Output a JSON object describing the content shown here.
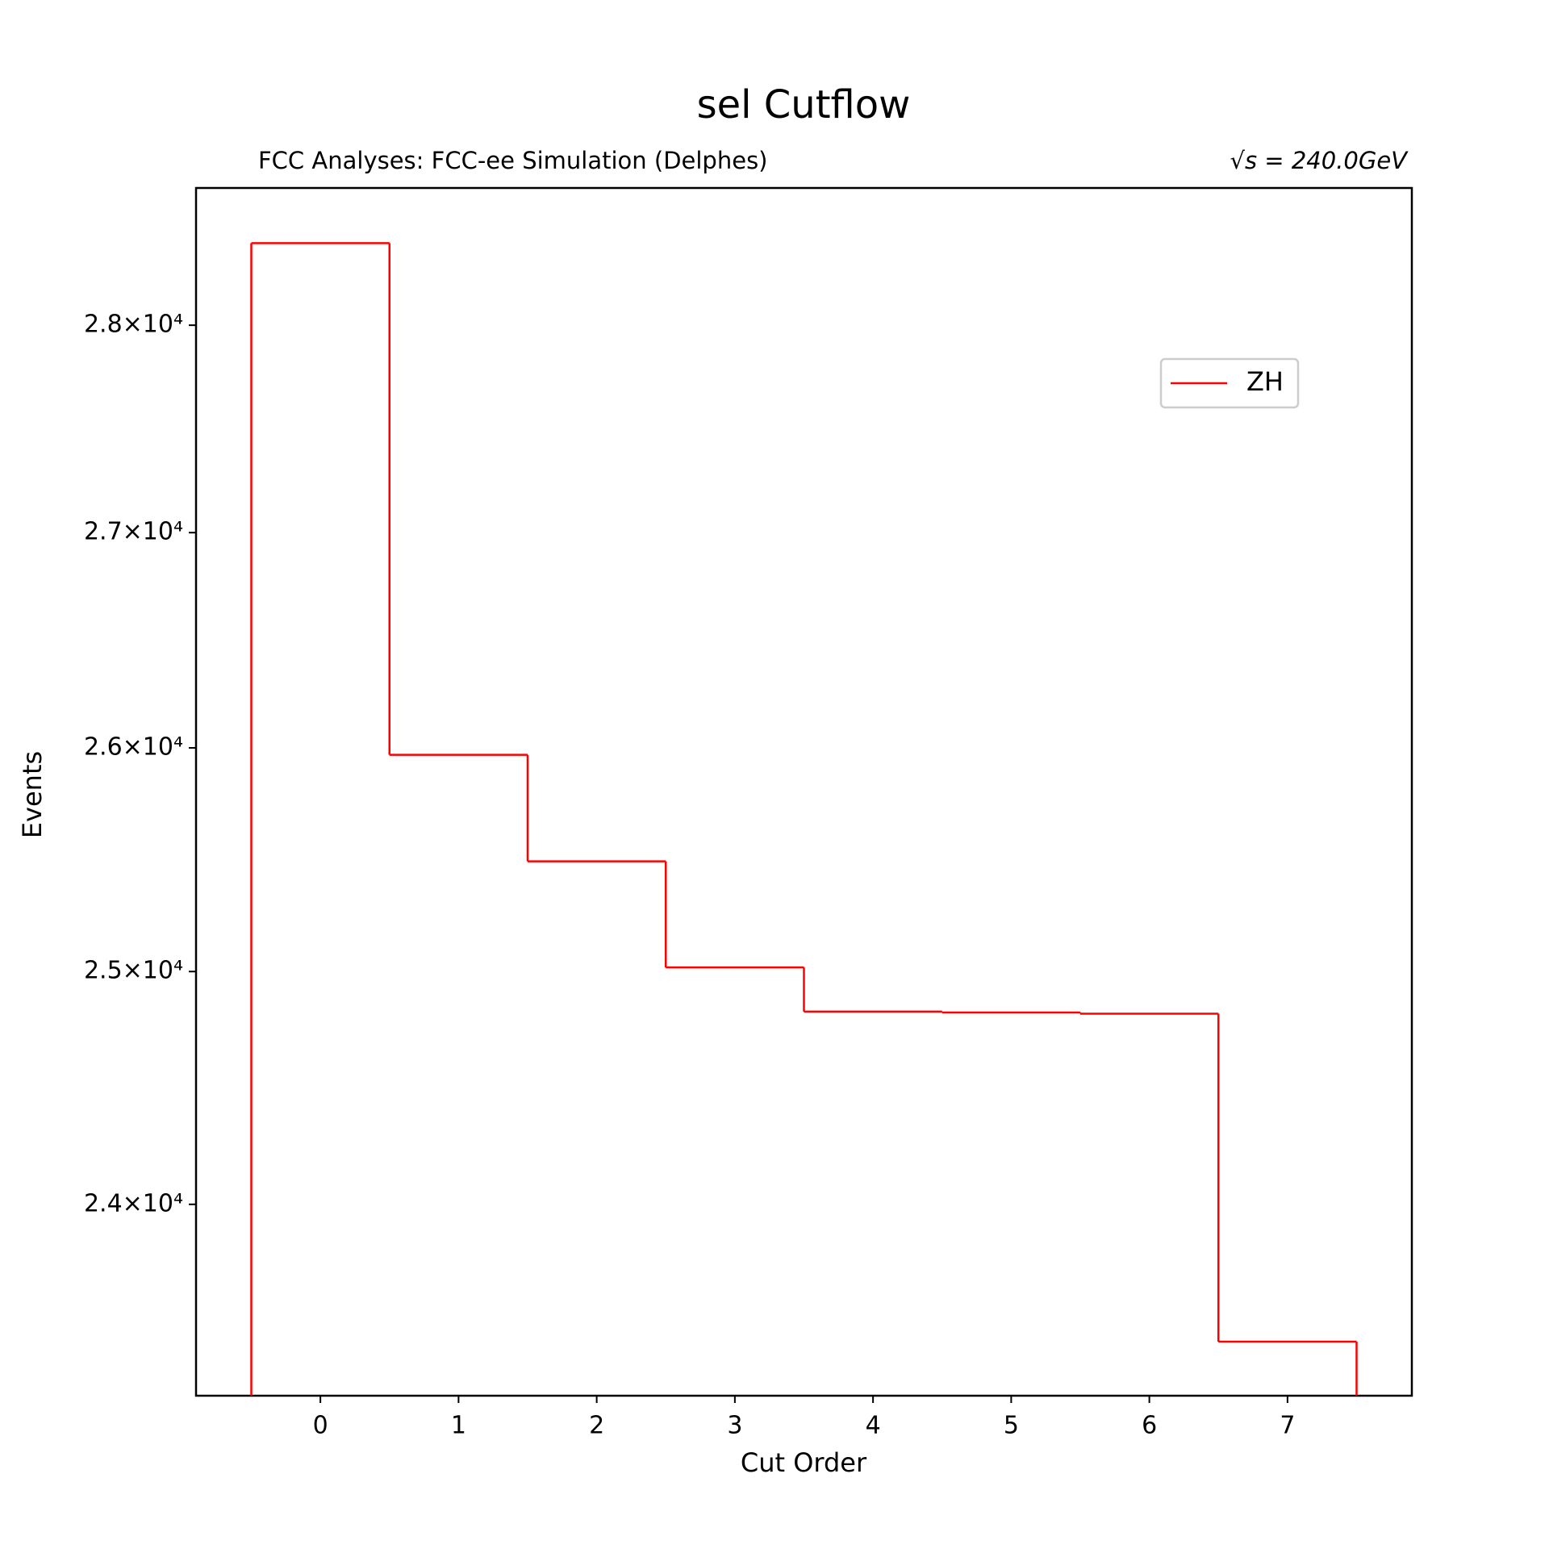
{
  "chart_data": {
    "type": "histogram",
    "title": "sel Cutflow",
    "subtitle_left": "FCC Analyses: FCC-ee Simulation (Delphes)",
    "subtitle_right": "√s = 240.0GeV",
    "x_label": "Cut Order",
    "y_label": "Events",
    "bins": [
      -0.5,
      0.5,
      1.5,
      2.5,
      3.5,
      4.5,
      5.5,
      6.5,
      7.5
    ],
    "series": [
      {
        "name": "ZH",
        "color": "#ff0000",
        "values": [
          28406,
          25968,
          25488,
          25018,
          24825,
          24821,
          24816,
          23429
        ]
      }
    ],
    "xlim": [
      -0.9,
      7.9
    ],
    "xticks": [
      0,
      1,
      2,
      3,
      4,
      5,
      6,
      7
    ],
    "ylim": [
      23208,
      28682
    ],
    "y_log": true,
    "yticks": [
      {
        "value": 24000,
        "label": "2.4×10⁴"
      },
      {
        "value": 25000,
        "label": "2.5×10⁴"
      },
      {
        "value": 26000,
        "label": "2.6×10⁴"
      },
      {
        "value": 27000,
        "label": "2.7×10⁴"
      },
      {
        "value": 28000,
        "label": "2.8×10⁴"
      }
    ],
    "grid": false,
    "legend_loc": "upper right",
    "title_color": "#1b2a55"
  }
}
